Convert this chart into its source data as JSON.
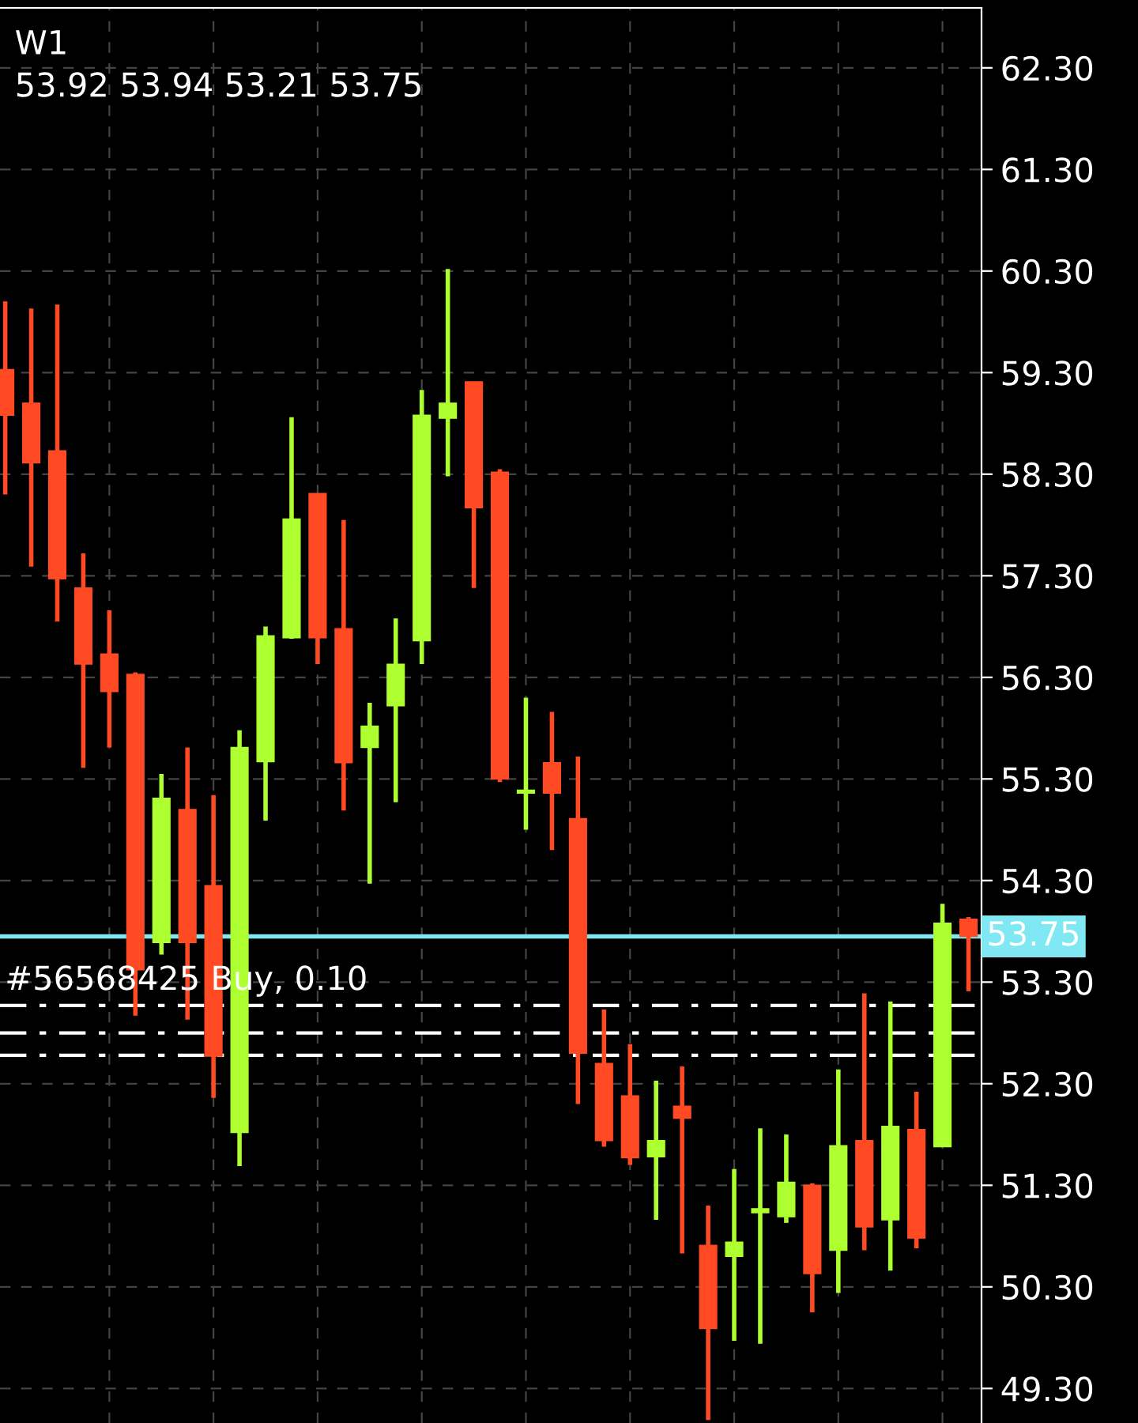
{
  "chart_data": {
    "type": "candlestick",
    "title": "W1",
    "subtitle": "53.92 53.94 53.21 53.75",
    "categories": [
      null,
      null,
      null,
      null,
      null,
      null,
      null,
      null,
      null,
      null,
      null,
      null,
      null,
      null,
      null,
      null,
      null,
      null,
      null,
      null,
      null,
      null,
      null,
      null,
      null,
      null,
      null,
      null,
      null,
      null,
      null,
      null,
      null,
      null,
      null,
      null,
      null,
      null
    ],
    "ohlc": [
      [
        59.33,
        60.0,
        58.1,
        58.88
      ],
      [
        59.0,
        59.93,
        57.39,
        58.41
      ],
      [
        58.53,
        59.97,
        56.85,
        57.27
      ],
      [
        57.18,
        57.52,
        55.41,
        56.43
      ],
      [
        56.53,
        56.96,
        55.61,
        56.16
      ],
      [
        56.33,
        56.35,
        52.97,
        53.42
      ],
      [
        53.69,
        55.35,
        53.57,
        55.11
      ],
      [
        55.0,
        55.61,
        52.93,
        53.69
      ],
      [
        54.25,
        55.14,
        52.16,
        52.57
      ],
      [
        51.82,
        55.78,
        51.49,
        55.61
      ],
      [
        55.47,
        56.8,
        54.89,
        56.71
      ],
      [
        56.69,
        58.86,
        56.68,
        57.86
      ],
      [
        58.11,
        58.11,
        56.43,
        56.69
      ],
      [
        56.78,
        57.85,
        54.99,
        55.46
      ],
      [
        55.61,
        56.05,
        54.27,
        55.82
      ],
      [
        56.02,
        56.88,
        55.07,
        56.43
      ],
      [
        56.66,
        59.13,
        56.43,
        58.88
      ],
      [
        58.85,
        60.32,
        58.28,
        59.0
      ],
      [
        59.21,
        59.21,
        57.18,
        57.97
      ],
      [
        58.32,
        58.35,
        55.27,
        55.3
      ],
      [
        55.16,
        56.1,
        54.8,
        55.19
      ],
      [
        55.46,
        55.96,
        54.6,
        55.16
      ],
      [
        54.91,
        55.52,
        52.1,
        52.6
      ],
      [
        52.5,
        53.03,
        51.68,
        51.74
      ],
      [
        52.18,
        52.69,
        51.5,
        51.57
      ],
      [
        51.58,
        52.33,
        50.96,
        51.74
      ],
      [
        52.08,
        52.47,
        50.63,
        51.96
      ],
      [
        50.71,
        51.1,
        48.99,
        49.89
      ],
      [
        50.6,
        51.46,
        49.77,
        50.74
      ],
      [
        51.03,
        51.86,
        49.74,
        51.07
      ],
      [
        50.99,
        51.8,
        50.93,
        51.33
      ],
      [
        51.3,
        51.32,
        50.05,
        50.43
      ],
      [
        50.66,
        52.44,
        50.24,
        51.69
      ],
      [
        51.74,
        53.19,
        50.66,
        50.89
      ],
      [
        50.96,
        53.11,
        50.46,
        51.88
      ],
      [
        51.85,
        52.22,
        50.68,
        50.78
      ],
      [
        51.68,
        54.07,
        51.68,
        53.88
      ],
      [
        53.92,
        53.94,
        53.21,
        53.75
      ]
    ],
    "colors": [
      "#ff4a24",
      "#ff4a24",
      "#ff4a24",
      "#ff4a24",
      "#ff4a24",
      "#ff4a24",
      "#adff2f",
      "#ff4a24",
      "#ff4a24",
      "#adff2f",
      "#adff2f",
      "#adff2f",
      "#ff4a24",
      "#ff4a24",
      "#adff2f",
      "#adff2f",
      "#adff2f",
      "#adff2f",
      "#ff4a24",
      "#ff4a24",
      "#adff2f",
      "#ff4a24",
      "#ff4a24",
      "#ff4a24",
      "#ff4a24",
      "#adff2f",
      "#ff4a24",
      "#ff4a24",
      "#adff2f",
      "#adff2f",
      "#adff2f",
      "#ff4a24",
      "#adff2f",
      "#ff4a24",
      "#adff2f",
      "#ff4a24",
      "#adff2f",
      "#ff4a24"
    ],
    "ylim": [
      48.96,
      62.89
    ],
    "yticks": [
      {
        "value": 49.3,
        "label": "49.30"
      },
      {
        "value": 50.3,
        "label": "50.30"
      },
      {
        "value": 51.3,
        "label": "51.30"
      },
      {
        "value": 52.3,
        "label": "52.30"
      },
      {
        "value": 53.3,
        "label": "53.30"
      },
      {
        "value": 54.3,
        "label": "54.30"
      },
      {
        "value": 55.3,
        "label": "55.30"
      },
      {
        "value": 56.3,
        "label": "56.30"
      },
      {
        "value": 57.3,
        "label": "57.30"
      },
      {
        "value": 58.3,
        "label": "58.30"
      },
      {
        "value": 59.3,
        "label": "59.30"
      },
      {
        "value": 60.3,
        "label": "60.30"
      },
      {
        "value": 61.3,
        "label": "61.30"
      },
      {
        "value": 62.3,
        "label": "62.30"
      }
    ],
    "ref_lines": [
      {
        "axis": "y",
        "value": 53.75,
        "label": "53.75",
        "color": "#7fe8f2",
        "line_style": "solid"
      },
      {
        "axis": "y",
        "value": 53.07,
        "label": "#56568425 Buy, 0.10",
        "color": "#ffffff",
        "line_style": "dashdot"
      },
      {
        "axis": "y",
        "value": 52.8,
        "label": null,
        "color": "#ffffff",
        "line_style": "dashdot"
      },
      {
        "axis": "y",
        "value": 52.58,
        "label": null,
        "color": "#ffffff",
        "line_style": "dashdot"
      }
    ],
    "grid": true
  }
}
